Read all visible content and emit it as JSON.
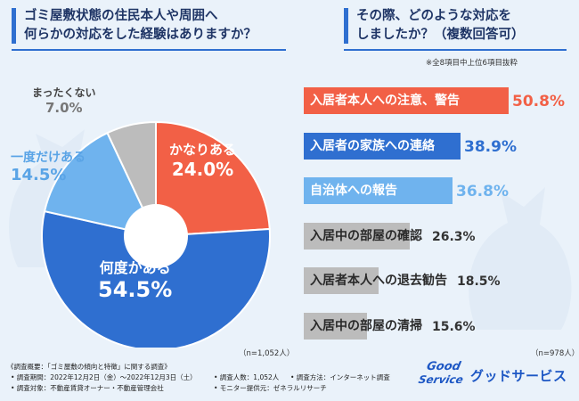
{
  "left_panel": {
    "question_line1": "ゴミ屋敷状態の住民本人や周囲へ",
    "question_line2": "何らかの対応をした経験はありますか？",
    "sample": "（n=1,052人）"
  },
  "right_panel": {
    "question_line1": "その際、どのような対応を",
    "question_line2": "しましたか？（複数回答可）",
    "note": "※全8項目中上位6項目抜粋",
    "sample": "（n=978人）"
  },
  "chart_data": [
    {
      "type": "pie",
      "title": "ゴミ屋敷状態の住民本人や周囲へ何らかの対応をした経験はありますか？",
      "categories": [
        "かなりある",
        "何度かある",
        "一度だけある",
        "まったくない"
      ],
      "values": [
        24.0,
        54.5,
        14.5,
        7.0
      ],
      "value_labels": [
        "24.0%",
        "54.5%",
        "14.5%",
        "7.0%"
      ],
      "colors": [
        "#f26046",
        "#2f6fd0",
        "#6fb3ee",
        "#bcbcbc"
      ],
      "hole": true
    },
    {
      "type": "bar",
      "orientation": "horizontal",
      "title": "その際、どのような対応をしましたか？（複数回答可）",
      "categories": [
        "入居者本人への注意、警告",
        "入居者の家族への連絡",
        "自治体への報告",
        "入居中の部屋の確認",
        "入居者本人への退去勧告",
        "入居中の部屋の清掃"
      ],
      "values": [
        50.8,
        38.9,
        36.8,
        26.3,
        18.5,
        15.6
      ],
      "value_labels": [
        "50.8%",
        "38.9%",
        "36.8%",
        "26.3%",
        "18.5%",
        "15.6%"
      ],
      "colors": [
        "#f26046",
        "#2f6fd0",
        "#6fb3ee",
        "#bcbcbc",
        "#bcbcbc",
        "#bcbcbc"
      ],
      "value_colors": [
        "#f26046",
        "#2f6fd0",
        "#6fb3ee",
        "#333333",
        "#333333",
        "#333333"
      ],
      "xlim": [
        0,
        60
      ]
    }
  ],
  "footer": {
    "overview": "《調査概要：「ゴミ屋敷の傾向と特徴」に関する調査》",
    "period": "• 調査期間：2022年12月2日（金）～2022年12月3日（土）",
    "target": "• 調査対象：不動産賃貸オーナー・不動産管理会社",
    "count": "• 調査人数：1,052人",
    "method": "• 調査方法：インターネット調査",
    "provider": "• モニター提供元：ゼネラルリサーチ"
  },
  "brand": {
    "logo_line1": "Good",
    "logo_line2": "Service",
    "name": "グッドサービス"
  }
}
